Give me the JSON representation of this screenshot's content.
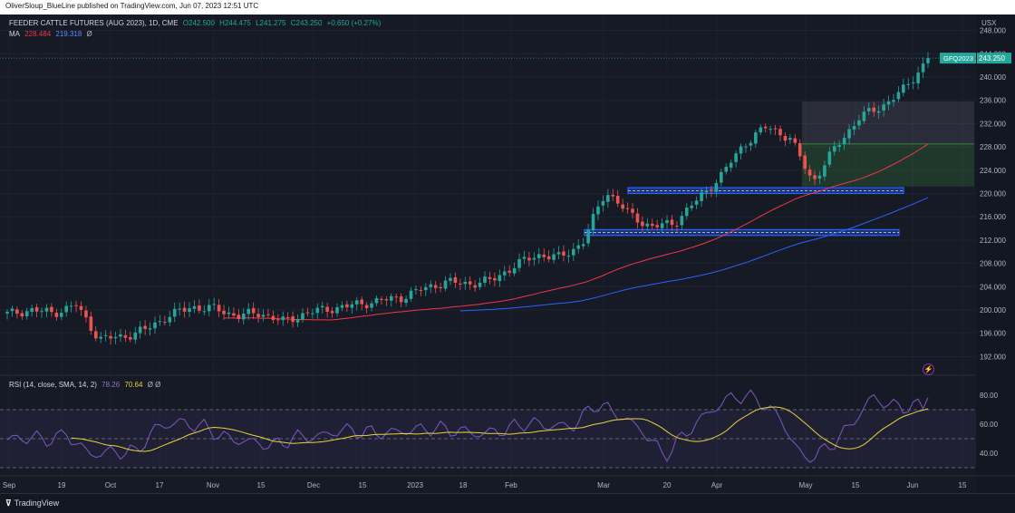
{
  "header": {
    "published": "OliverSloup_BlueLine published on TradingView.com, Jun 07, 2023 12:51 UTC"
  },
  "legend": {
    "symbol": "FEEDER CATTLE FUTURES (AUG 2023), 1D, CME",
    "open": "O242.500",
    "high": "H244.475",
    "low": "L241.275",
    "close": "C243.250",
    "change": "+0.650 (+0.27%)",
    "ma_label": "MA",
    "ma1": "228.484",
    "ma2": "219.318",
    "ma_extra": "Ø",
    "rsi_label": "RSI (14, close, SMA, 14, 2)",
    "rsi_value": "78.26",
    "rsi_ma": "70.64",
    "rsi_extra": "Ø Ø"
  },
  "price_badge": {
    "symbol": "GFQ2023",
    "price": "243.250"
  },
  "footer": {
    "brand": "TradingView"
  },
  "colors": {
    "background": "#161a25",
    "up": "#26a69a",
    "down": "#ef5350",
    "ma_fast": "#f23645",
    "ma_slow": "#2962ff",
    "rsi": "#7e57c2",
    "rsi_ma": "#e8d43a",
    "zone_box": "#2962ff",
    "target_box": "#43a047"
  },
  "chart_data": {
    "type": "candlestick",
    "currency": "USX",
    "y_ticks": [
      "192.000",
      "196.000",
      "200.000",
      "204.000",
      "208.000",
      "212.000",
      "216.000",
      "220.000",
      "224.000",
      "228.000",
      "232.000",
      "236.000",
      "240.000",
      "244.000",
      "248.000"
    ],
    "x_ticks": [
      "Sep",
      "19",
      "Oct",
      "17",
      "Nov",
      "15",
      "Dec",
      "15",
      "2023",
      "18",
      "Feb",
      "Mar",
      "20",
      "Apr",
      "May",
      "15",
      "Jun",
      "15"
    ],
    "price_anchors": [
      [
        "Sep",
        199.3
      ],
      [
        "Sep2",
        200.0
      ],
      [
        "Sep3",
        199.5
      ],
      [
        "Sep4",
        200.8
      ],
      [
        "Oct",
        195.0
      ],
      [
        "Oct2",
        195.4
      ],
      [
        "Oct3",
        196.6
      ],
      [
        "17",
        199.0
      ],
      [
        "172",
        200.5
      ],
      [
        "173",
        200.2
      ],
      [
        "Nov",
        199.0
      ],
      [
        "Nov2",
        199.5
      ],
      [
        "Nov3",
        198.0
      ],
      [
        "15",
        199.5
      ],
      [
        "Dec",
        200.2
      ],
      [
        "Dec2",
        200.8
      ],
      [
        "Dec3",
        201.5
      ],
      [
        "152",
        202.0
      ],
      [
        "2023",
        203.5
      ],
      [
        "20232",
        204.8
      ],
      [
        "18",
        204.5
      ],
      [
        "182",
        205.0
      ],
      [
        "Feb",
        207.5
      ],
      [
        "Feb2",
        209.5
      ],
      [
        "Feb3",
        209.0
      ],
      [
        "Mar",
        211.5
      ],
      [
        "Mar2",
        220.5
      ],
      [
        "Mar3",
        216.5
      ],
      [
        "20",
        214.2
      ],
      [
        "202",
        215.0
      ],
      [
        "Apr",
        219.0
      ],
      [
        "Apr2",
        223.0
      ],
      [
        "Apr3",
        228.5
      ],
      [
        "May",
        231.5
      ],
      [
        "May2",
        229.5
      ],
      [
        "May3",
        222.0
      ],
      [
        "152b",
        228.0
      ],
      [
        "153",
        233.0
      ],
      [
        "154",
        235.0
      ],
      [
        "Jun",
        238.0
      ],
      [
        "Jun2",
        243.2
      ]
    ],
    "ma_fast": {
      "name": "MA",
      "last": 228.484
    },
    "ma_slow": {
      "name": "MA",
      "last": 219.318
    },
    "zones": [
      {
        "name": "resistance-support-zone-upper",
        "low": 220.0,
        "high": 221.0
      },
      {
        "name": "resistance-support-zone-lower",
        "low": 212.8,
        "high": 213.8
      }
    ],
    "target_box": {
      "entry": 228.5,
      "stop": 221.2,
      "target": 235.8
    },
    "rsi": {
      "ticks": [
        "40.00",
        "60.00",
        "80.00"
      ],
      "levels": [
        30,
        50,
        70
      ],
      "last": 78.26,
      "ma_last": 70.64
    }
  }
}
